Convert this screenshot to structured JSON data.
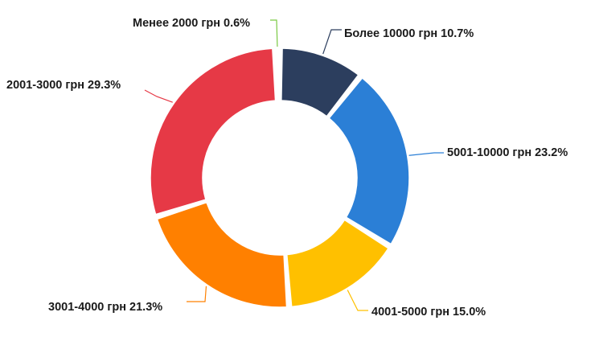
{
  "chart_data": {
    "type": "pie",
    "donut": true,
    "title": "",
    "slices": [
      {
        "label": "Более 10000 грн",
        "value": 10.7,
        "display": "Более 10000 грн 10.7%",
        "color": "#2c3e5e"
      },
      {
        "label": "5001-10000 грн",
        "value": 23.2,
        "display": "5001-10000 грн 23.2%",
        "color": "#2b7fd6"
      },
      {
        "label": "4001-5000 грн",
        "value": 15.0,
        "display": "4001-5000 грн 15.0%",
        "color": "#ffc000"
      },
      {
        "label": "3001-4000 грн",
        "value": 21.3,
        "display": "3001-4000 грн 21.3%",
        "color": "#ff8000"
      },
      {
        "label": "2001-3000 грн",
        "value": 29.3,
        "display": "2001-3000 грн 29.3%",
        "color": "#e63946"
      },
      {
        "label": "Менее 2000 грн",
        "value": 0.6,
        "display": "Менее 2000 грн 0.6%",
        "color": "#7ac943"
      }
    ]
  }
}
